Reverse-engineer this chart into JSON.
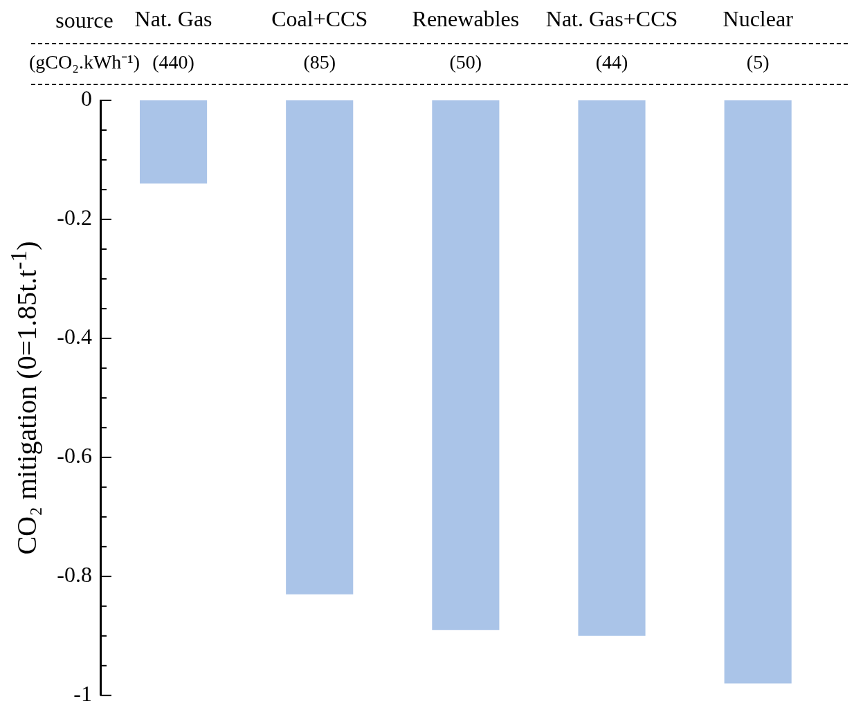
{
  "chart_data": {
    "type": "bar",
    "xlabel": "source",
    "ylabel": "CO₂ mitigation (0=1.85t.t$^{-1}$)",
    "categories": [
      "Nat. Gas",
      "Coal+CCS",
      "Renewables",
      "Nat. Gas+CCS",
      "Nuclear"
    ],
    "values": [
      -0.14,
      -0.83,
      -0.89,
      -0.9,
      -0.98
    ],
    "color": "#aac4e8",
    "ylim": [
      -1,
      0
    ],
    "yticks": [
      0,
      {
        "value": -0.05,
        "label": null
      },
      {
        "value": -0.1,
        "label": null
      },
      {
        "value": -0.15,
        "label": null
      },
      -0.2,
      {
        "value": -0.25,
        "label": null
      },
      {
        "value": -0.3,
        "label": null
      },
      {
        "value": -0.35,
        "label": null
      },
      -0.4,
      {
        "value": -0.45,
        "label": null
      },
      {
        "value": -0.5,
        "label": null
      },
      {
        "value": -0.55,
        "label": null
      },
      -0.6,
      {
        "value": -0.65,
        "label": null
      },
      {
        "value": -0.7,
        "label": null
      },
      {
        "value": -0.75,
        "label": null
      },
      -0.8,
      {
        "value": -0.85,
        "label": null
      },
      {
        "value": -0.9,
        "label": null
      },
      {
        "value": -0.95,
        "label": null
      },
      -1
    ],
    "grid": false,
    "legend": false,
    "annotations": [
      "(gCO₂.kWh⁻¹)",
      "(440)",
      "(85)",
      "(50)",
      "(44)",
      "(5)"
    ]
  }
}
